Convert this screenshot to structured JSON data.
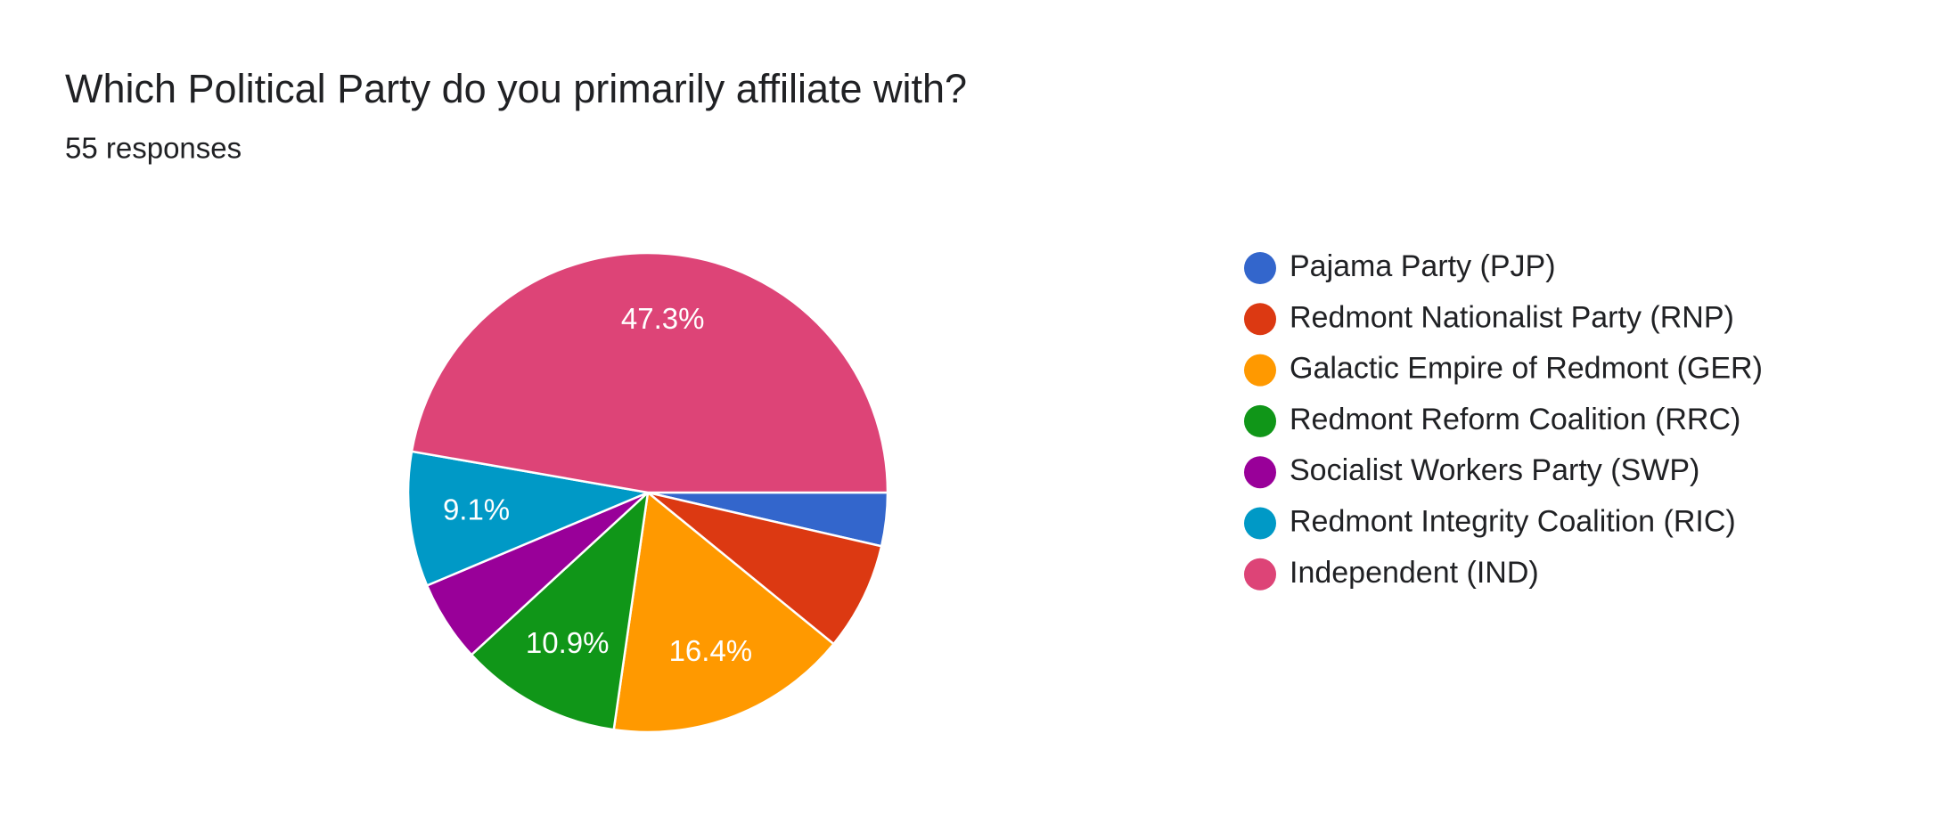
{
  "chart_data": {
    "type": "pie",
    "title": "Which Political Party do you primarily affiliate with?",
    "subtitle": "55 responses",
    "categories": [
      "Pajama Party (PJP)",
      "Redmont Nationalist Party (RNP)",
      "Galactic Empire of Redmont (GER)",
      "Redmont Reform Coalition (RRC)",
      "Socialist Workers Party (SWP)",
      "Redmont Integrity Coalition (RIC)",
      "Independent (IND)"
    ],
    "values": [
      3.6,
      7.3,
      16.4,
      10.9,
      5.5,
      9.1,
      47.3
    ],
    "value_labels": [
      null,
      null,
      "16.4%",
      "10.9%",
      null,
      "9.1%",
      "47.3%"
    ],
    "colors": [
      "#3366cc",
      "#dc3912",
      "#ff9900",
      "#109618",
      "#990099",
      "#0099c6",
      "#dd4477"
    ],
    "legend": "right"
  }
}
